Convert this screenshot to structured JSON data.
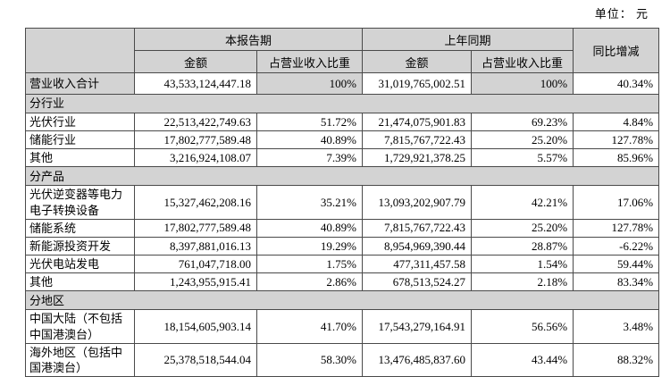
{
  "page": {
    "unit_label": "单位： 元"
  },
  "table": {
    "header": {
      "current_period": "本报告期",
      "prior_period": "上年同期",
      "yoy_change": "同比增减",
      "amount": "金额",
      "revenue_share": "占营业收入比重"
    },
    "colors": {
      "header_fill": "#d3d3d3",
      "border": "#4a4a4a",
      "background": "#ffffff"
    },
    "rows": [
      {
        "type": "total",
        "id": "total-revenue",
        "label": "营业收入合计",
        "cur_amount": "43,533,124,447.18",
        "cur_share": "100%",
        "prior_amount": "31,019,765,002.51",
        "prior_share": "100%",
        "yoy": "40.34%"
      },
      {
        "type": "section",
        "id": "by-industry",
        "label": "分行业"
      },
      {
        "type": "data",
        "id": "pv-industry",
        "label": "光伏行业",
        "cur_amount": "22,513,422,749.63",
        "cur_share": "51.72%",
        "prior_amount": "21,474,075,901.83",
        "prior_share": "69.23%",
        "yoy": "4.84%"
      },
      {
        "type": "data",
        "id": "storage-industry",
        "label": "储能行业",
        "cur_amount": "17,802,777,589.48",
        "cur_share": "40.89%",
        "prior_amount": "7,815,767,722.43",
        "prior_share": "25.20%",
        "yoy": "127.78%"
      },
      {
        "type": "data",
        "id": "other-industry",
        "label": "其他",
        "cur_amount": "3,216,924,108.07",
        "cur_share": "7.39%",
        "prior_amount": "1,729,921,378.25",
        "prior_share": "5.57%",
        "yoy": "85.96%"
      },
      {
        "type": "section",
        "id": "by-product",
        "label": "分产品"
      },
      {
        "type": "data",
        "id": "pv-inverter-equipment",
        "label": "光伏逆变器等电力\n电子转换设备",
        "cur_amount": "15,327,462,208.16",
        "cur_share": "35.21%",
        "prior_amount": "13,093,202,907.79",
        "prior_share": "42.21%",
        "yoy": "17.06%"
      },
      {
        "type": "data",
        "id": "storage-systems",
        "label": "储能系统",
        "cur_amount": "17,802,777,589.48",
        "cur_share": "40.89%",
        "prior_amount": "7,815,767,722.43",
        "prior_share": "25.20%",
        "yoy": "127.78%"
      },
      {
        "type": "data",
        "id": "new-energy-investment",
        "label": "新能源投资开发",
        "cur_amount": "8,397,881,016.13",
        "cur_share": "19.29%",
        "prior_amount": "8,954,969,390.44",
        "prior_share": "28.87%",
        "yoy": "-6.22%"
      },
      {
        "type": "data",
        "id": "pv-power-generation",
        "label": "光伏电站发电",
        "cur_amount": "761,047,718.00",
        "cur_share": "1.75%",
        "prior_amount": "477,311,457.58",
        "prior_share": "1.54%",
        "yoy": "59.44%"
      },
      {
        "type": "data",
        "id": "other-products",
        "label": "其他",
        "cur_amount": "1,243,955,915.41",
        "cur_share": "2.86%",
        "prior_amount": "678,513,524.27",
        "prior_share": "2.18%",
        "yoy": "83.34%"
      },
      {
        "type": "section",
        "id": "by-region",
        "label": "分地区"
      },
      {
        "type": "data",
        "id": "mainland-china",
        "label": "中国大陆（不包括\n中国港澳台）",
        "cur_amount": "18,154,605,903.14",
        "cur_share": "41.70%",
        "prior_amount": "17,543,279,164.91",
        "prior_share": "56.56%",
        "yoy": "3.48%"
      },
      {
        "type": "data",
        "id": "overseas-region",
        "label": "海外地区（包括中\n国港澳台）",
        "cur_amount": "25,378,518,544.04",
        "cur_share": "58.30%",
        "prior_amount": "13,476,485,837.60",
        "prior_share": "43.44%",
        "yoy": "88.32%"
      }
    ]
  }
}
